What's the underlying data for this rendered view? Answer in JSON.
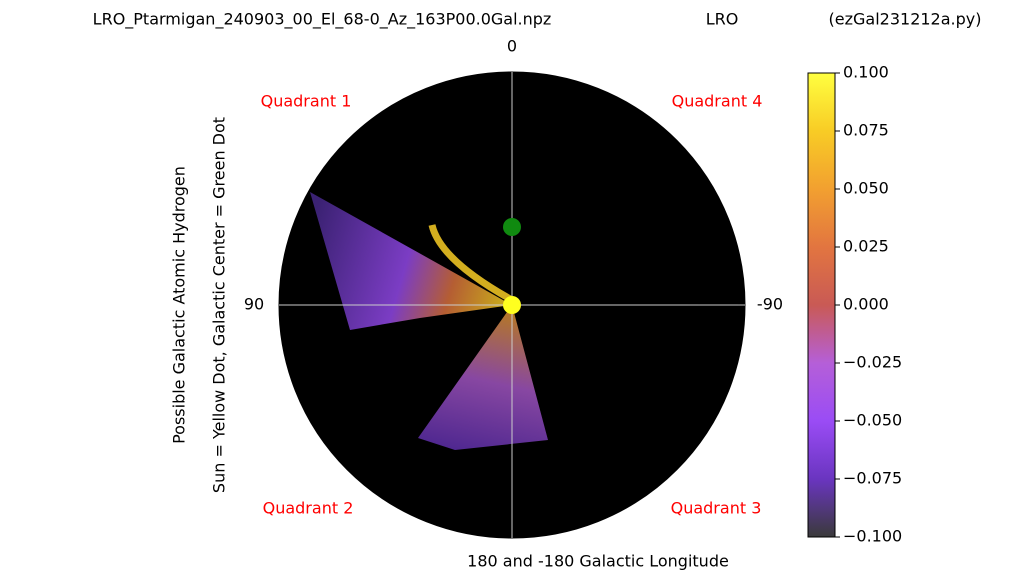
{
  "chart_data": {
    "type": "polar-heatmap",
    "title": "LRO_Ptarmigan_240903_00_El_68-0_Az_163P00.0Gal.npz",
    "title_center": "LRO",
    "title_right": "(ezGal231212a.py)",
    "ylabel_lines": [
      "Possible Galactic Atomic Hydrogen",
      "Sun = Yellow Dot, Galactic Center = Green Dot"
    ],
    "angle_labels": {
      "top": "0",
      "left": "90",
      "right": "-90",
      "bottom": "180 and -180 Galactic Longitude"
    },
    "quadrants": [
      "Quadrant 1",
      "Quadrant 4",
      "Quadrant 2",
      "Quadrant 3"
    ],
    "background": "#000000",
    "colorbar": {
      "lim": [
        -0.1,
        0.1
      ],
      "ticks": [
        {
          "value": 0.1,
          "label": "0.100"
        },
        {
          "value": 0.075,
          "label": "0.075"
        },
        {
          "value": 0.05,
          "label": "0.050"
        },
        {
          "value": 0.025,
          "label": "0.025"
        },
        {
          "value": 0,
          "label": "0.000"
        },
        {
          "value": -0.025,
          "label": "−0.025"
        },
        {
          "value": -0.05,
          "label": "−0.050"
        },
        {
          "value": -0.075,
          "label": "−0.075"
        },
        {
          "value": -0.1,
          "label": "−0.100"
        }
      ],
      "colors": [
        "#3a3a3a",
        "#6a35c0",
        "#9a4cf5",
        "#b55fd8",
        "#c95a55",
        "#e27540",
        "#f2a030",
        "#f8cc25",
        "#ffff40"
      ]
    }
  }
}
